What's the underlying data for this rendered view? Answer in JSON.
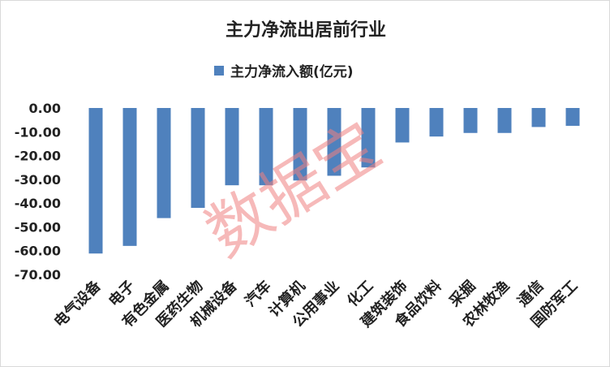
{
  "chart_data": {
    "type": "bar",
    "title": "主力净流出居前行业",
    "legend_position": "top",
    "series": [
      {
        "name": "主力净流入额(亿元)",
        "color": "#4f81bd",
        "values": [
          -61.2,
          -58.0,
          -46.3,
          -42.0,
          -32.5,
          -32.5,
          -30.5,
          -28.5,
          -25.0,
          -14.5,
          -12.0,
          -10.5,
          -10.5,
          -8.0,
          -7.5
        ]
      }
    ],
    "categories": [
      "电气设备",
      "电子",
      "有色金属",
      "医药生物",
      "机械设备",
      "汽车",
      "计算机",
      "公用事业",
      "化工",
      "建筑装饰",
      "食品饮料",
      "采掘",
      "农林牧渔",
      "通信",
      "国防军工"
    ],
    "y_ticks": [
      "0.00",
      "-10.00",
      "-20.00",
      "-30.00",
      "-40.00",
      "-50.00",
      "-60.00",
      "-70.00"
    ],
    "ylim": [
      -70,
      0
    ],
    "grid": false,
    "watermark": "数据宝",
    "watermark_color": "#f08080"
  }
}
